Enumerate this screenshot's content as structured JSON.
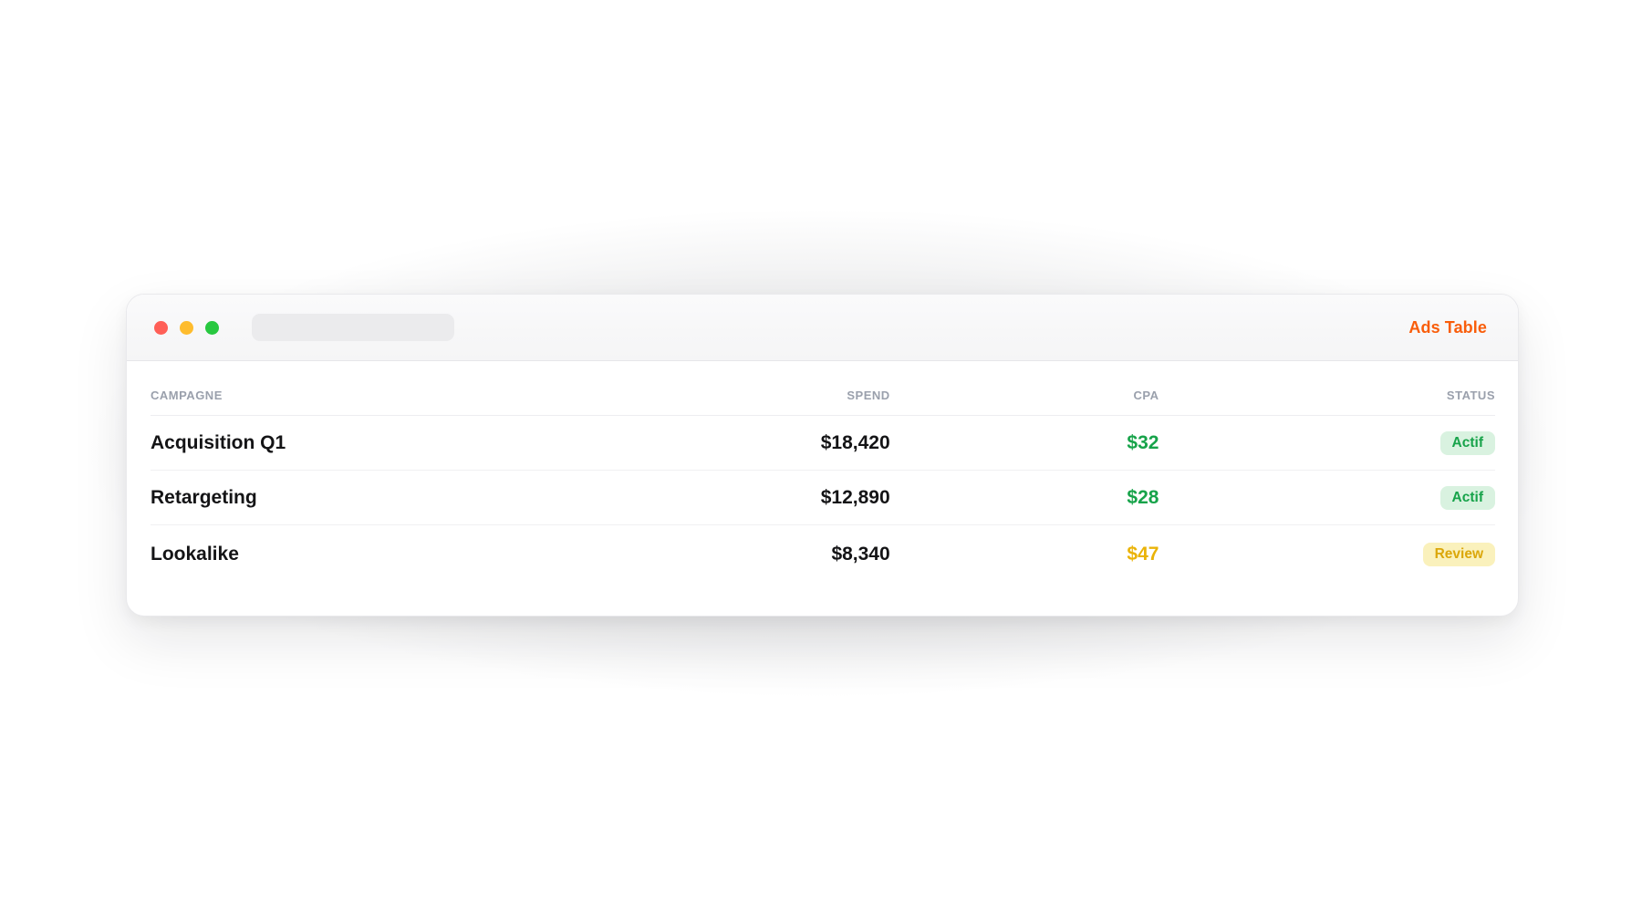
{
  "theme": {
    "colors": {
      "accent-orange": "#f95d0a",
      "green": "#17a34a",
      "green-badge-bg": "#d9f2e0",
      "amber": "#eab308",
      "amber-badge-bg": "#faf1bc",
      "amber-badge-text": "#dba70a",
      "header-gray": "#9aa0ac",
      "text-dark": "#141416",
      "traffic-red": "#ff5f57",
      "traffic-yellow": "#febc2e",
      "traffic-green": "#28c840"
    }
  },
  "window": {
    "toolbar": {
      "title": "Ads Table",
      "address_value": "",
      "address_placeholder": ""
    },
    "table": {
      "columns": [
        "CAMPAGNE",
        "SPEND",
        "CPA",
        "STATUS"
      ],
      "rows": [
        {
          "campagne": "Acquisition Q1",
          "spend": "$18,420",
          "cpa": "$32",
          "cpa_tone": "green",
          "status": "Actif",
          "status_tone": "green"
        },
        {
          "campagne": "Retargeting",
          "spend": "$12,890",
          "cpa": "$28",
          "cpa_tone": "green",
          "status": "Actif",
          "status_tone": "green"
        },
        {
          "campagne": "Lookalike",
          "spend": "$8,340",
          "cpa": "$47",
          "cpa_tone": "amber",
          "status": "Review",
          "status_tone": "amber"
        }
      ]
    }
  }
}
